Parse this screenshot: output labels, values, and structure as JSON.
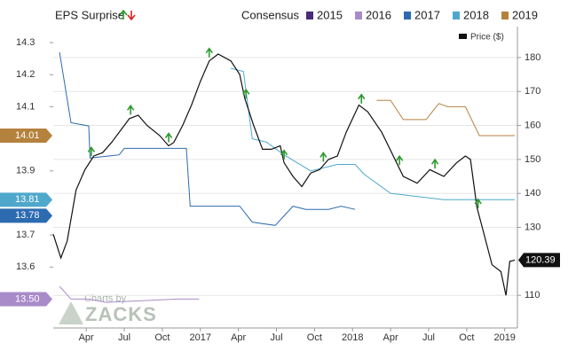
{
  "chart_data": {
    "type": "line",
    "legend_title": "EPS Surprise",
    "consensus_label": "Consensus",
    "watermark": {
      "line1": "Charts by",
      "line2": "ZACKS"
    },
    "xlim": [
      0.4,
      37
    ],
    "xticks": [
      {
        "value": 3,
        "label": "Apr"
      },
      {
        "value": 6,
        "label": "Jul"
      },
      {
        "value": 9,
        "label": "Oct"
      },
      {
        "value": 12,
        "label": "2017"
      },
      {
        "value": 15,
        "label": "Apr"
      },
      {
        "value": 18,
        "label": "Jul"
      },
      {
        "value": 21,
        "label": "Oct"
      },
      {
        "value": 24,
        "label": "2018"
      },
      {
        "value": 27,
        "label": "Apr"
      },
      {
        "value": 30,
        "label": "Jul"
      },
      {
        "value": 33,
        "label": "Oct"
      },
      {
        "value": 36,
        "label": "2019"
      }
    ],
    "ylim": [
      13.41,
      14.35
    ],
    "yticks": [
      13.6,
      13.7,
      13.9,
      14.1,
      14.2,
      14.3
    ],
    "y2lim": [
      100.4,
      189.1
    ],
    "y2ticks": [
      110,
      130,
      140,
      150,
      160,
      170,
      180
    ],
    "grid": true,
    "series": [
      {
        "name": "2015",
        "color": "#4b2a7a",
        "x": [],
        "values": []
      },
      {
        "name": "2016",
        "color": "#a98bc9",
        "last_label": "13.50",
        "x": [
          0.9,
          1.8,
          3.2,
          4.6,
          10.2,
          11.9
        ],
        "values": [
          13.54,
          13.5,
          13.5,
          13.49,
          13.5,
          13.5
        ]
      },
      {
        "name": "2017",
        "color": "#2c6bb0",
        "last_label": "13.78",
        "x": [
          0.9,
          1.8,
          3.2,
          3.3,
          5.6,
          6.0,
          10.9,
          11.2,
          15.1,
          16.1,
          17.9,
          19.3,
          20.3,
          22.1,
          23.1,
          24.2
        ],
        "values": [
          14.27,
          14.05,
          14.04,
          13.94,
          13.95,
          13.97,
          13.97,
          13.79,
          13.79,
          13.74,
          13.73,
          13.79,
          13.78,
          13.78,
          13.79,
          13.78
        ]
      },
      {
        "name": "2018",
        "color": "#4fa8cc",
        "last_label": "13.81",
        "x": [
          14.4,
          15.4,
          16.1,
          17.2,
          18.6,
          20.7,
          22.8,
          24.2,
          24.9,
          27.0,
          31.2,
          36.8
        ],
        "values": [
          14.22,
          14.21,
          14.0,
          13.99,
          13.95,
          13.9,
          13.92,
          13.92,
          13.89,
          13.83,
          13.81,
          13.81
        ]
      },
      {
        "name": "2019",
        "color": "#b5823e",
        "last_label": "14.01",
        "x": [
          25.9,
          27.0,
          28.0,
          29.8,
          30.8,
          31.5,
          32.9,
          34.0,
          35.4,
          36.8
        ],
        "values": [
          14.12,
          14.12,
          14.06,
          14.06,
          14.11,
          14.1,
          14.1,
          14.01,
          14.01,
          14.01
        ]
      },
      {
        "name": "Price ($)",
        "color": "#111111",
        "axis": "y2",
        "last_label": "120.39",
        "x": [
          0.4,
          1.0,
          1.5,
          2.2,
          2.9,
          3.6,
          4.3,
          5.0,
          6.4,
          7.1,
          7.8,
          8.8,
          9.5,
          9.9,
          10.6,
          11.3,
          12.0,
          12.7,
          13.4,
          14.4,
          15.1,
          15.5,
          16.2,
          16.9,
          17.6,
          18.3,
          18.6,
          19.3,
          20.0,
          20.7,
          21.4,
          22.1,
          22.8,
          23.5,
          24.5,
          25.2,
          26.3,
          28.0,
          29.1,
          30.1,
          31.2,
          32.2,
          32.9,
          33.3,
          33.8,
          34.3,
          35.0,
          35.7,
          36.1,
          36.4,
          36.8
        ],
        "values": [
          128,
          121,
          126,
          141,
          147,
          151,
          152,
          155,
          162,
          163,
          160,
          157,
          154,
          155,
          160,
          166,
          173,
          179,
          181,
          179,
          175,
          168,
          160,
          153,
          153,
          154,
          149,
          145,
          142,
          146,
          147,
          150,
          151,
          158,
          166,
          164,
          158,
          145,
          143,
          147,
          145,
          149,
          151,
          150,
          136,
          129,
          119,
          117,
          110,
          120,
          120.39
        ]
      }
    ],
    "surprises": {
      "color": "#2e9a2e",
      "x": [
        3.4,
        6.5,
        9.5,
        12.7,
        15.6,
        18.6,
        21.7,
        24.7,
        27.7,
        30.5,
        33.9
      ]
    }
  }
}
